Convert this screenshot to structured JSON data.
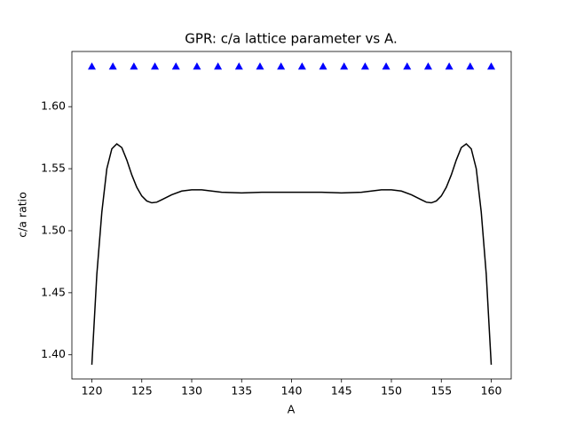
{
  "chart_data": {
    "type": "line",
    "title": "GPR: c/a lattice parameter vs A.",
    "x_label": "A",
    "y_label": "c/a ratio",
    "xlim": [
      118,
      162
    ],
    "ylim": [
      1.3805,
      1.6445
    ],
    "xticks": [
      120,
      125,
      130,
      135,
      140,
      145,
      150,
      155,
      160
    ],
    "yticks": [
      {
        "value": 1.4,
        "label": "1.40"
      },
      {
        "value": 1.45,
        "label": "1.45"
      },
      {
        "value": 1.5,
        "label": "1.50"
      },
      {
        "value": 1.55,
        "label": "1.55"
      },
      {
        "value": 1.6,
        "label": "1.60"
      }
    ],
    "grid": false,
    "series": [
      {
        "type": "line",
        "color": "#000000",
        "x": [
          120,
          120.5,
          121,
          121.5,
          122,
          122.5,
          123,
          123.5,
          124,
          124.5,
          125,
          125.5,
          126,
          126.5,
          127,
          128,
          129,
          130,
          131,
          132,
          133,
          135,
          137,
          140,
          143,
          145,
          147,
          148,
          149,
          150,
          151,
          152,
          153,
          153.5,
          154,
          154.5,
          155,
          155.5,
          156,
          156.5,
          157,
          157.5,
          158,
          158.5,
          159,
          159.5,
          160
        ],
        "values": [
          1.392,
          1.465,
          1.515,
          1.55,
          1.566,
          1.57,
          1.567,
          1.557,
          1.545,
          1.535,
          1.528,
          1.524,
          1.5225,
          1.523,
          1.525,
          1.529,
          1.532,
          1.533,
          1.533,
          1.532,
          1.531,
          1.5305,
          1.531,
          1.531,
          1.531,
          1.5305,
          1.531,
          1.532,
          1.533,
          1.533,
          1.532,
          1.529,
          1.525,
          1.523,
          1.5225,
          1.524,
          1.528,
          1.535,
          1.545,
          1.557,
          1.567,
          1.57,
          1.566,
          1.55,
          1.515,
          1.465,
          1.392
        ]
      },
      {
        "type": "scatter",
        "marker": "triangle",
        "color": "#0000ff",
        "x": [
          120,
          122.105,
          124.211,
          126.316,
          128.421,
          130.526,
          132.632,
          134.737,
          136.842,
          138.947,
          141.053,
          143.158,
          145.263,
          147.368,
          149.474,
          151.579,
          153.684,
          155.789,
          157.895,
          160
        ],
        "values": [
          1.6325,
          1.6325,
          1.6325,
          1.6325,
          1.6325,
          1.6325,
          1.6325,
          1.6325,
          1.6325,
          1.6325,
          1.6325,
          1.6325,
          1.6325,
          1.6325,
          1.6325,
          1.6325,
          1.6325,
          1.6325,
          1.6325,
          1.6325
        ]
      }
    ]
  }
}
